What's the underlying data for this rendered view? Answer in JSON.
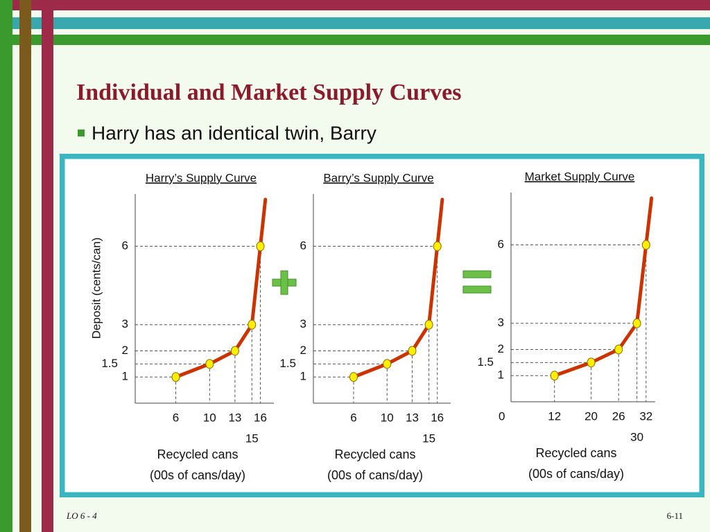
{
  "slide": {
    "title": "Individual and Market Supply Curves",
    "bullet": "Harry has an identical twin, Barry",
    "footer_left": "LO 6 - 4",
    "footer_right": "6-11"
  },
  "chart_data": [
    {
      "type": "line",
      "title": "Harry’s Supply Curve",
      "ylabel": "Deposit (cents/can)",
      "xlabel": [
        "Recycled cans",
        "(00s of cans/day)"
      ],
      "x": [
        6,
        10,
        13,
        15,
        16
      ],
      "values": [
        1,
        1.5,
        2,
        3,
        6
      ],
      "color": "#cc3300",
      "xlim": [
        1.2,
        17.6
      ],
      "ylim": [
        0,
        8
      ],
      "xticks": [
        6,
        10,
        13,
        15,
        16
      ],
      "yticks": [
        1,
        1.5,
        2,
        3,
        6
      ]
    },
    {
      "type": "line",
      "title": "Barry’s Supply Curve",
      "xlabel": [
        "Recycled cans",
        "(00s of cans/day)"
      ],
      "x": [
        6,
        10,
        13,
        15,
        16
      ],
      "values": [
        1,
        1.5,
        2,
        3,
        6
      ],
      "color": "#cc3300",
      "xlim": [
        1.2,
        17.6
      ],
      "ylim": [
        0,
        8
      ],
      "xticks": [
        6,
        10,
        13,
        15,
        16
      ],
      "yticks": [
        1,
        1.5,
        2,
        3,
        6
      ]
    },
    {
      "type": "line",
      "title": "Market Supply Curve",
      "origin_label": "0",
      "xlabel": [
        "Recycled cans",
        "(00s of cans/day)"
      ],
      "x": [
        12,
        20,
        26,
        30,
        32
      ],
      "values": [
        1,
        1.5,
        2,
        3,
        6
      ],
      "color": "#cc3300",
      "xlim": [
        2.5,
        34
      ],
      "ylim": [
        0,
        8
      ],
      "xticks": [
        12,
        20,
        26,
        30,
        32
      ],
      "yticks": [
        1,
        1.5,
        2,
        3,
        6
      ]
    }
  ]
}
